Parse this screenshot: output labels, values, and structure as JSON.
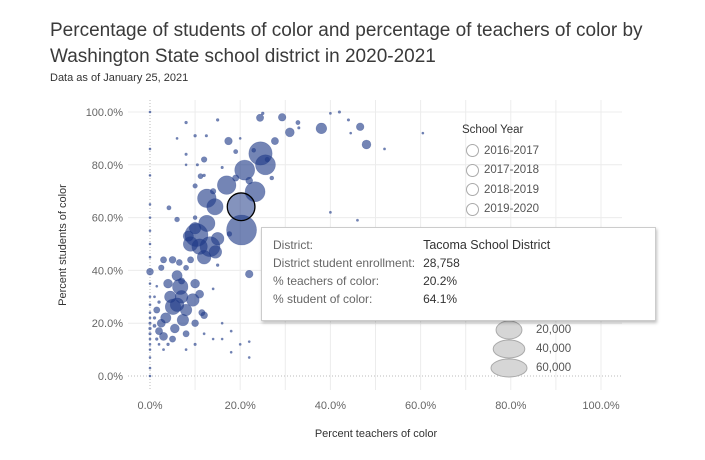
{
  "title": "Percentage of students of color and percentage of teachers of color by Washington State school district in 2020-2021",
  "subtitle": "Data as of January 25, 2021",
  "colors": {
    "mark": "#1f3a87",
    "highlight_stroke": "#000000",
    "legend_gray": "#d6d6d6"
  },
  "legend": {
    "title": "School Year",
    "options": [
      "2016-2017",
      "2017-2018",
      "2018-2019",
      "2019-2020"
    ],
    "size_entries": [
      {
        "label": "20,000",
        "value": 20000
      },
      {
        "label": "40,000",
        "value": 40000
      },
      {
        "label": "60,000",
        "value": 60000
      }
    ]
  },
  "tooltip": {
    "rows": [
      {
        "label": "District:",
        "value": "Tacoma School District"
      },
      {
        "label": "District student enrollment:",
        "value": "28,758"
      },
      {
        "label": "% teachers of color:",
        "value": "20.2%"
      },
      {
        "label": "% student of color:",
        "value": "64.1%"
      }
    ]
  },
  "chart_data": {
    "type": "scatter",
    "xlabel": "Percent teachers of color",
    "ylabel": "Percent students of color",
    "xlim": [
      0,
      100
    ],
    "ylim": [
      0,
      100
    ],
    "xticks": [
      "0.0%",
      "20.0%",
      "40.0%",
      "60.0%",
      "80.0%",
      "100.0%"
    ],
    "yticks": [
      "0.0%",
      "20.0%",
      "40.0%",
      "60.0%",
      "80.0%",
      "100.0%"
    ],
    "grid": true,
    "size_field": "District student enrollment",
    "highlighted": {
      "name": "Tacoma School District",
      "x": 20.2,
      "y": 64.1,
      "size": 28758
    },
    "points": [
      [
        20.3,
        55.3,
        33800
      ],
      [
        24.5,
        84.3,
        20500
      ],
      [
        25.6,
        80,
        15000
      ],
      [
        21,
        78,
        15000
      ],
      [
        23.3,
        69.8,
        15000
      ],
      [
        17,
        72.3,
        13000
      ],
      [
        12.6,
        67.3,
        13000
      ],
      [
        14.4,
        64.1,
        10000
      ],
      [
        10.3,
        53.4,
        20000
      ],
      [
        12.6,
        57.8,
        10000
      ],
      [
        13.3,
        49,
        15000
      ],
      [
        11,
        49,
        9000
      ],
      [
        14.5,
        47,
        6000
      ],
      [
        9,
        50,
        8000
      ],
      [
        12,
        45,
        7000
      ],
      [
        10,
        56,
        5000
      ],
      [
        15,
        52,
        6000
      ],
      [
        8.5,
        53,
        4000
      ],
      [
        6.7,
        33.8,
        9000
      ],
      [
        5.1,
        26.2,
        9000
      ],
      [
        9.5,
        28.8,
        6000
      ],
      [
        7.3,
        21.2,
        5000
      ],
      [
        4.5,
        30,
        5000
      ],
      [
        6,
        38,
        4000
      ],
      [
        8,
        25,
        5000
      ],
      [
        3.5,
        22,
        4000
      ],
      [
        5.5,
        18,
        3000
      ],
      [
        7,
        30,
        6000
      ],
      [
        4,
        35,
        3000
      ],
      [
        6,
        27,
        7000
      ],
      [
        2.5,
        20,
        2500
      ],
      [
        3,
        15,
        2500
      ],
      [
        1.5,
        25,
        1500
      ],
      [
        2,
        17,
        2000
      ],
      [
        5,
        14,
        1500
      ],
      [
        8,
        16,
        1500
      ],
      [
        10,
        20,
        1800
      ],
      [
        11.5,
        24,
        1500
      ],
      [
        10,
        35,
        3000
      ],
      [
        11,
        31,
        2500
      ],
      [
        3,
        44,
        1500
      ],
      [
        5,
        44,
        1800
      ],
      [
        6.5,
        43,
        1400
      ],
      [
        2.5,
        41,
        1200
      ],
      [
        8,
        41,
        1000
      ],
      [
        9,
        44,
        1500
      ],
      [
        7,
        36,
        1500
      ],
      [
        24.4,
        97.8,
        2000
      ],
      [
        29.3,
        98,
        2200
      ],
      [
        31,
        92.3,
        3000
      ],
      [
        38,
        93.8,
        4300
      ],
      [
        46.6,
        94.4,
        2200
      ],
      [
        48,
        87.7,
        3000
      ],
      [
        27.7,
        89,
        2000
      ],
      [
        17.4,
        89,
        2200
      ],
      [
        12,
        82,
        1200
      ],
      [
        11.2,
        75.7,
        1000
      ],
      [
        0,
        39.5,
        1800
      ],
      [
        22,
        38.6,
        2200
      ],
      [
        12,
        23,
        1800
      ],
      [
        6,
        59.3,
        900
      ],
      [
        4.2,
        63.7,
        700
      ],
      [
        32.8,
        96,
        700
      ],
      [
        17.6,
        53.8,
        900
      ],
      [
        19,
        85,
        700
      ],
      [
        23,
        85.5,
        600
      ],
      [
        8,
        96,
        300
      ],
      [
        10,
        91,
        300
      ],
      [
        12.5,
        91,
        250
      ],
      [
        15,
        97,
        300
      ],
      [
        20,
        90,
        150
      ],
      [
        25,
        99.5,
        300
      ],
      [
        33,
        94,
        250
      ],
      [
        40,
        99.5,
        200
      ],
      [
        42,
        100,
        250
      ],
      [
        44,
        97,
        250
      ],
      [
        44.5,
        92,
        100
      ],
      [
        52,
        86,
        200
      ],
      [
        60.5,
        92,
        100
      ],
      [
        6,
        90,
        200
      ],
      [
        8,
        84,
        250
      ],
      [
        10.5,
        80,
        250
      ],
      [
        8,
        80,
        150
      ],
      [
        12,
        76,
        300
      ],
      [
        16,
        79,
        250
      ],
      [
        40,
        62,
        200
      ],
      [
        46,
        59,
        200
      ],
      [
        0,
        100,
        100
      ],
      [
        0,
        86,
        100
      ],
      [
        0,
        76,
        100
      ],
      [
        0,
        65,
        100
      ],
      [
        0,
        60,
        100
      ],
      [
        0,
        55,
        100
      ],
      [
        0,
        50,
        100
      ],
      [
        0,
        45,
        100
      ],
      [
        0,
        35,
        120
      ],
      [
        0,
        30,
        150
      ],
      [
        0,
        27,
        200
      ],
      [
        0,
        24,
        150
      ],
      [
        0,
        22,
        200
      ],
      [
        0,
        20,
        250
      ],
      [
        0,
        18,
        300
      ],
      [
        0,
        16,
        250
      ],
      [
        0,
        14,
        200
      ],
      [
        0,
        12,
        150
      ],
      [
        0,
        10,
        100
      ],
      [
        0,
        7,
        100
      ],
      [
        0,
        3,
        100
      ],
      [
        0,
        0,
        100
      ],
      [
        1,
        22,
        300
      ],
      [
        1,
        19,
        400
      ],
      [
        1.5,
        14,
        300
      ],
      [
        2,
        12,
        200
      ],
      [
        1,
        30,
        200
      ],
      [
        1.5,
        34,
        150
      ],
      [
        2,
        28,
        300
      ],
      [
        3,
        10,
        200
      ],
      [
        4,
        12,
        300
      ],
      [
        8,
        10,
        200
      ],
      [
        10,
        12,
        250
      ],
      [
        12,
        16,
        200
      ],
      [
        14,
        14,
        150
      ],
      [
        16,
        14,
        150
      ],
      [
        18,
        9,
        150
      ],
      [
        20,
        12,
        150
      ],
      [
        22,
        7,
        120
      ],
      [
        22,
        13,
        120
      ],
      [
        18,
        17,
        200
      ],
      [
        16,
        20,
        150
      ],
      [
        14,
        33,
        200
      ],
      [
        15,
        42,
        300
      ],
      [
        10,
        60,
        600
      ],
      [
        10,
        72,
        800
      ],
      [
        14,
        70,
        1200
      ],
      [
        19,
        75,
        1500
      ],
      [
        22,
        74,
        1800
      ],
      [
        26,
        82,
        800
      ],
      [
        27,
        75,
        600
      ]
    ]
  }
}
